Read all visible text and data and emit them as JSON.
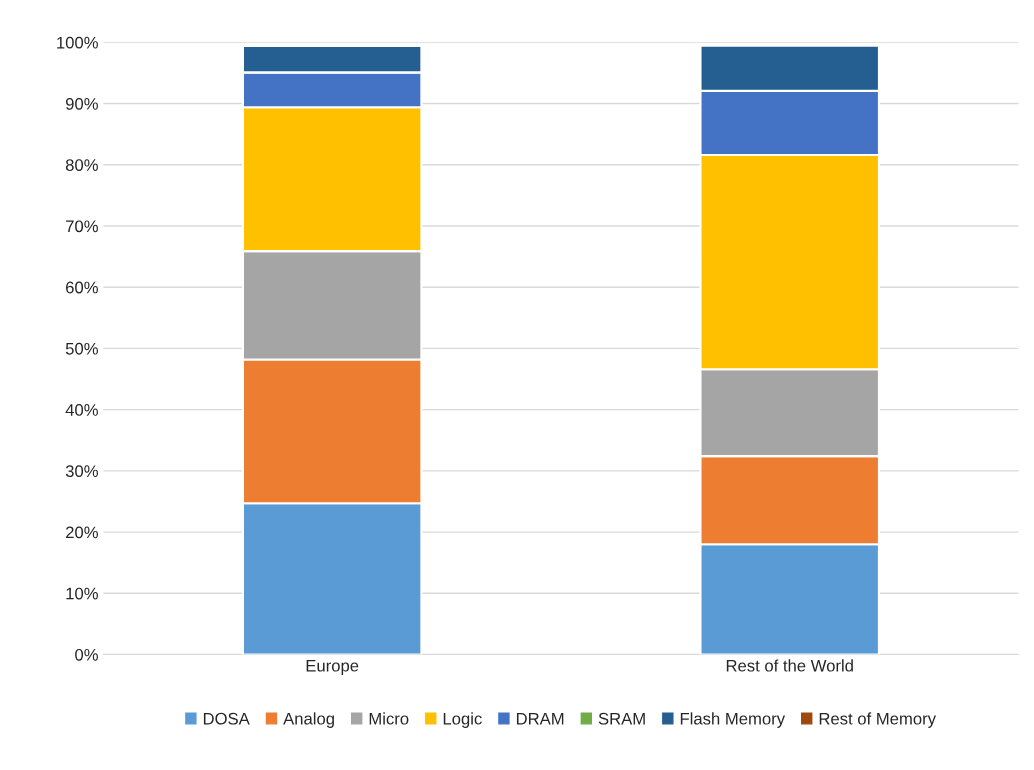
{
  "chart_data": {
    "type": "bar",
    "stacked": true,
    "categories": [
      "Europe",
      "Rest of the World"
    ],
    "series": [
      {
        "name": "DOSA",
        "color": "#5b9bd5",
        "values": [
          24.7,
          18.0
        ]
      },
      {
        "name": "Analog",
        "color": "#ed7d31",
        "values": [
          23.5,
          14.4
        ]
      },
      {
        "name": "Micro",
        "color": "#a5a5a5",
        "values": [
          17.7,
          14.2
        ]
      },
      {
        "name": "Logic",
        "color": "#ffc000",
        "values": [
          23.5,
          35.0
        ]
      },
      {
        "name": "DRAM",
        "color": "#4472c4",
        "values": [
          5.7,
          10.5
        ]
      },
      {
        "name": "SRAM",
        "color": "#70ad47",
        "values": [
          null,
          null
        ]
      },
      {
        "name": "Flash Memory",
        "color": "#255e91",
        "values": [
          4.3,
          7.4
        ]
      },
      {
        "name": "Rest of Memory",
        "color": "#9e480e",
        "values": [
          null,
          null
        ]
      }
    ],
    "ylim": [
      0,
      100
    ],
    "yticks": [
      {
        "value": 0,
        "label": "0%"
      },
      {
        "value": 10,
        "label": "10%"
      },
      {
        "value": 20,
        "label": "20%"
      },
      {
        "value": 30,
        "label": "30%"
      },
      {
        "value": 40,
        "label": "40%"
      },
      {
        "value": 50,
        "label": "50%"
      },
      {
        "value": 60,
        "label": "60%"
      },
      {
        "value": 70,
        "label": "70%"
      },
      {
        "value": 80,
        "label": "80%"
      },
      {
        "value": 90,
        "label": "90%"
      },
      {
        "value": 100,
        "label": "100%"
      }
    ],
    "grid": "y",
    "legend": "bottom"
  }
}
